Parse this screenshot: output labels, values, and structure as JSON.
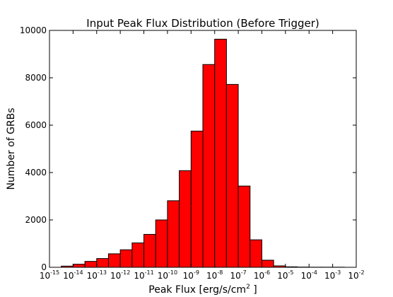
{
  "chart_data": {
    "type": "bar",
    "title": "Input Peak Flux Distribution (Before Trigger)",
    "xlabel": "Peak Flux [erg/s/cm",
    "xlabel_sup": "2",
    "xlabel_suffix": " ]",
    "ylabel": "Number of GRBs",
    "x_scale": "log",
    "x_base": "10",
    "xlim": [
      -15,
      -2
    ],
    "ylim": [
      0,
      10000
    ],
    "x_ticks": [
      {
        "exp": -15,
        "sup": "-15"
      },
      {
        "exp": -14,
        "sup": "-14"
      },
      {
        "exp": -13,
        "sup": "-13"
      },
      {
        "exp": -12,
        "sup": "-12"
      },
      {
        "exp": -11,
        "sup": "-11"
      },
      {
        "exp": -10,
        "sup": "-10"
      },
      {
        "exp": -9,
        "sup": "-9"
      },
      {
        "exp": -8,
        "sup": "-8"
      },
      {
        "exp": -7,
        "sup": "-7"
      },
      {
        "exp": -6,
        "sup": "-6"
      },
      {
        "exp": -5,
        "sup": "-5"
      },
      {
        "exp": -4,
        "sup": "-4"
      },
      {
        "exp": -3,
        "sup": "-3"
      },
      {
        "exp": -2,
        "sup": "-2"
      }
    ],
    "y_ticks": [
      0,
      2000,
      4000,
      6000,
      8000,
      10000
    ],
    "y_tick_labels": [
      "0",
      "2000",
      "4000",
      "6000",
      "8000",
      "10000"
    ],
    "bin_edges_log10": [
      -14.5,
      -14.0,
      -13.5,
      -13.0,
      -12.5,
      -12.0,
      -11.5,
      -11.0,
      -10.5,
      -10.0,
      -9.5,
      -9.0,
      -8.5,
      -8.0,
      -7.5,
      -7.0,
      -6.5,
      -6.0,
      -5.5,
      -5.0,
      -4.5,
      -4.0,
      -3.5,
      -3.0,
      -2.5
    ],
    "values": [
      50,
      130,
      250,
      370,
      570,
      740,
      1030,
      1390,
      2000,
      2810,
      4080,
      5750,
      8560,
      9630,
      7720,
      3430,
      1160,
      300,
      60,
      20,
      10,
      5,
      5,
      5
    ],
    "bar_color": "#ff0000",
    "edge_color": "#000000",
    "grid": false,
    "legend": "none"
  }
}
